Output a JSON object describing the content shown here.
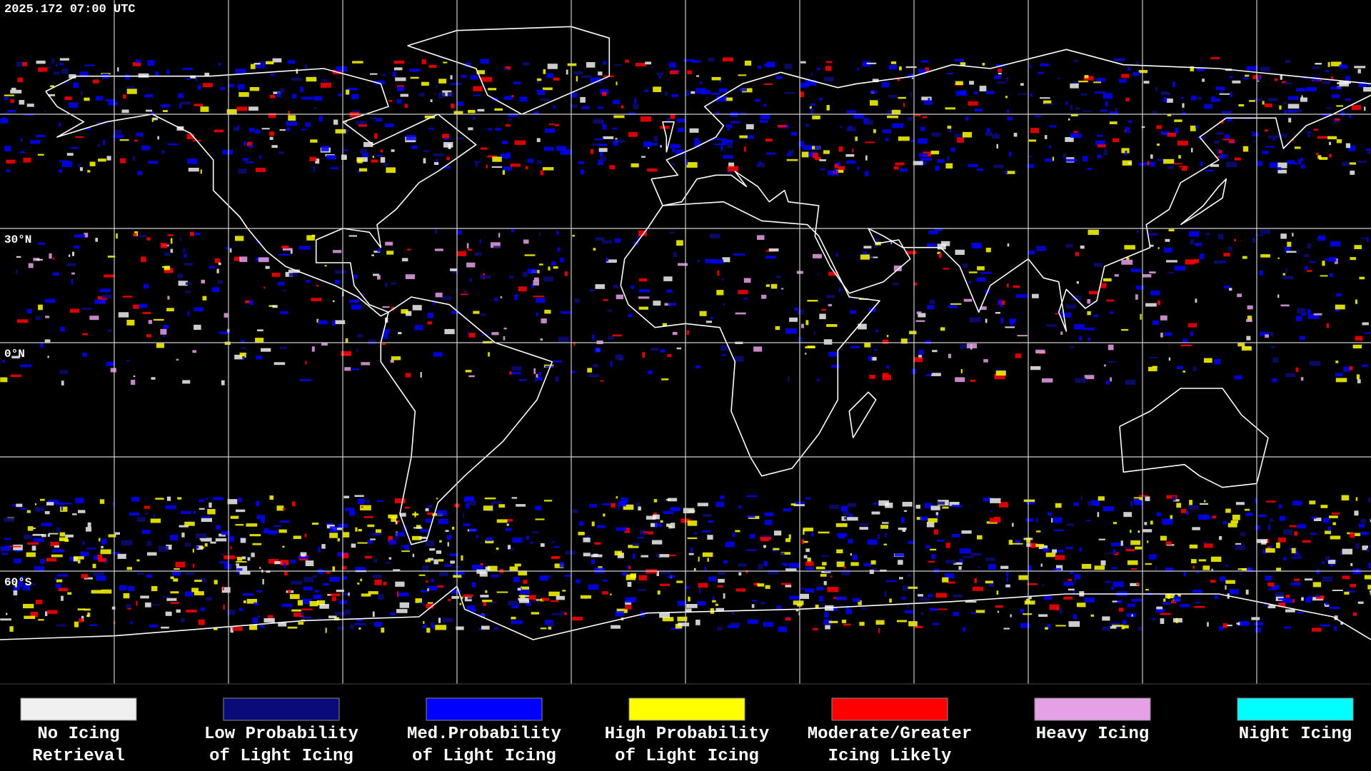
{
  "header": {
    "timestamp": "2025.172 07:00 UTC"
  },
  "map": {
    "grid_labels": [
      "30°N",
      "0°N",
      "60°S"
    ]
  },
  "legend": {
    "items": [
      {
        "lines": [
          "No Icing",
          "Retrieval"
        ],
        "color": "#f0f0f0"
      },
      {
        "lines": [
          "Low Probability",
          "of Light Icing"
        ],
        "color": "#0a0a78"
      },
      {
        "lines": [
          "Med.Probability",
          "of Light Icing"
        ],
        "color": "#0000ff"
      },
      {
        "lines": [
          "High Probability",
          "of Light Icing"
        ],
        "color": "#ffff00"
      },
      {
        "lines": [
          "Moderate/Greater",
          "Icing Likely"
        ],
        "color": "#ff0000"
      },
      {
        "lines": [
          "Heavy Icing"
        ],
        "color": "#e6a0e6"
      },
      {
        "lines": [
          "Night Icing"
        ],
        "color": "#00ffff"
      }
    ]
  }
}
